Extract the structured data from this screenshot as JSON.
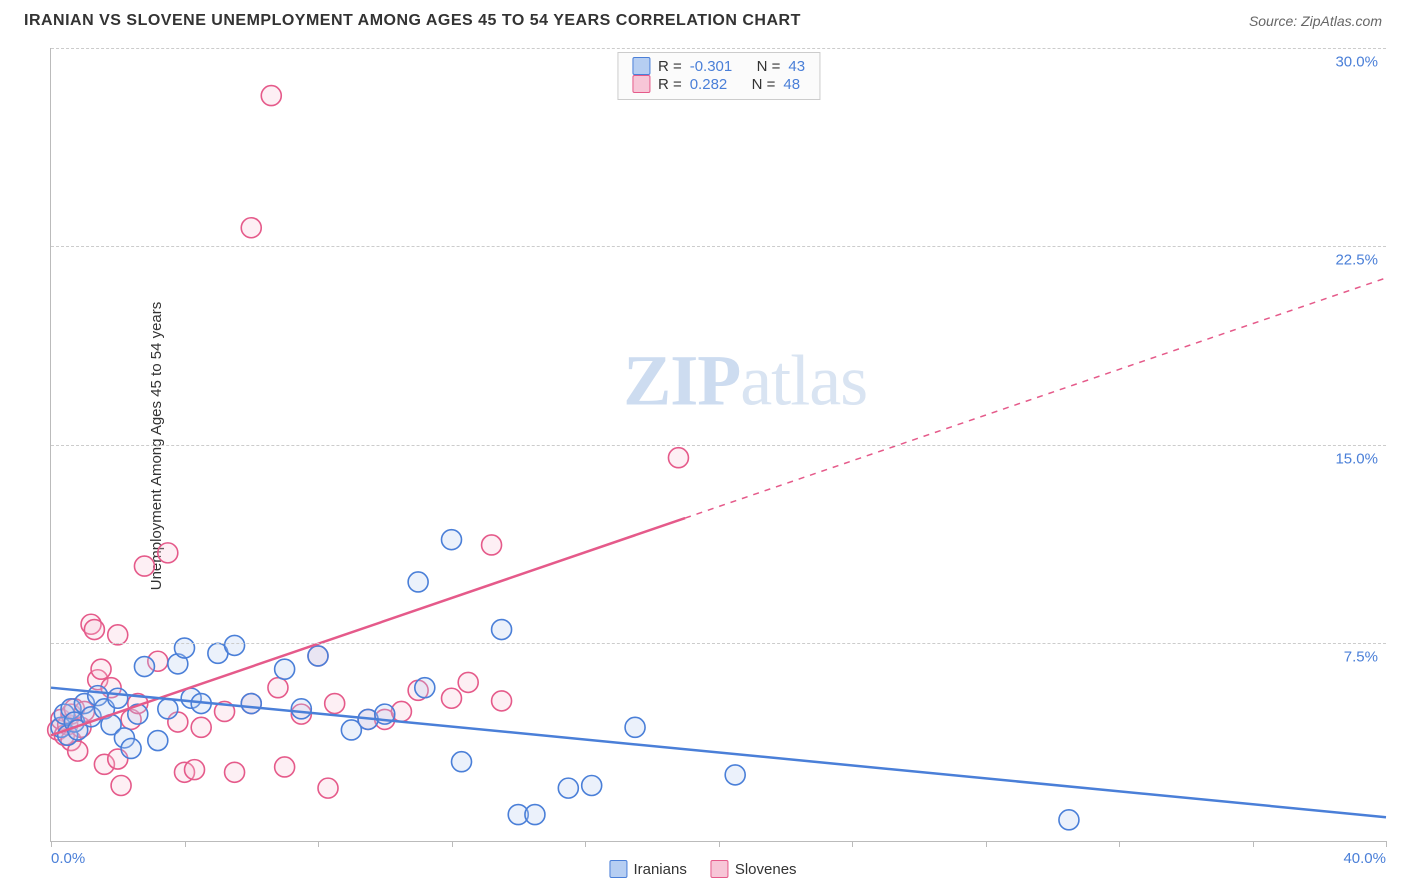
{
  "header": {
    "title": "IRANIAN VS SLOVENE UNEMPLOYMENT AMONG AGES 45 TO 54 YEARS CORRELATION CHART",
    "source": "Source: ZipAtlas.com"
  },
  "watermark": {
    "zip": "ZIP",
    "atlas": "atlas"
  },
  "chart": {
    "type": "scatter-with-regression",
    "ylabel": "Unemployment Among Ages 45 to 54 years",
    "xlim": [
      0,
      40
    ],
    "ylim": [
      0,
      30
    ],
    "x_ticks": [
      0,
      4,
      8,
      12,
      16,
      20,
      24,
      28,
      32,
      36,
      40
    ],
    "y_gridlines": [
      7.5,
      15.0,
      22.5,
      30.0
    ],
    "y_tick_labels": [
      "7.5%",
      "15.0%",
      "22.5%",
      "30.0%"
    ],
    "x_start_label": "0.0%",
    "x_end_label": "40.0%",
    "background_color": "#ffffff",
    "grid_color": "#cccccc",
    "axis_color": "#bbbbbb",
    "tick_label_color": "#4a7fd8",
    "label_fontsize": 15,
    "marker_radius": 10,
    "marker_stroke_width": 1.6,
    "marker_fill_opacity": 0.28,
    "series": {
      "iranians": {
        "label": "Iranians",
        "color": "#4a7fd8",
        "fill": "#b6cef2",
        "R": "-0.301",
        "N": "43",
        "regression": {
          "x1": 0,
          "y1": 5.8,
          "x2": 40,
          "y2": 0.9,
          "solid_to_x": 40
        },
        "points": [
          [
            0.3,
            4.3
          ],
          [
            0.4,
            4.8
          ],
          [
            0.5,
            4.0
          ],
          [
            0.6,
            5.0
          ],
          [
            0.7,
            4.5
          ],
          [
            0.8,
            4.2
          ],
          [
            1.0,
            5.2
          ],
          [
            1.2,
            4.7
          ],
          [
            1.4,
            5.5
          ],
          [
            1.6,
            5.0
          ],
          [
            1.8,
            4.4
          ],
          [
            2.0,
            5.4
          ],
          [
            2.2,
            3.9
          ],
          [
            2.4,
            3.5
          ],
          [
            2.6,
            4.8
          ],
          [
            2.8,
            6.6
          ],
          [
            3.2,
            3.8
          ],
          [
            3.5,
            5.0
          ],
          [
            3.8,
            6.7
          ],
          [
            4.0,
            7.3
          ],
          [
            4.2,
            5.4
          ],
          [
            4.5,
            5.2
          ],
          [
            5.0,
            7.1
          ],
          [
            5.5,
            7.4
          ],
          [
            6.0,
            5.2
          ],
          [
            7.0,
            6.5
          ],
          [
            7.5,
            5.0
          ],
          [
            8.0,
            7.0
          ],
          [
            9.0,
            4.2
          ],
          [
            9.5,
            4.6
          ],
          [
            10.0,
            4.8
          ],
          [
            11.0,
            9.8
          ],
          [
            11.2,
            5.8
          ],
          [
            12.0,
            11.4
          ],
          [
            12.3,
            3.0
          ],
          [
            13.5,
            8.0
          ],
          [
            14.0,
            1.0
          ],
          [
            14.5,
            1.0
          ],
          [
            15.5,
            2.0
          ],
          [
            16.2,
            2.1
          ],
          [
            17.5,
            4.3
          ],
          [
            20.5,
            2.5
          ],
          [
            30.5,
            0.8
          ]
        ]
      },
      "slovenes": {
        "label": "Slovenes",
        "color": "#e55a8a",
        "fill": "#f7c6d7",
        "R": "0.282",
        "N": "48",
        "regression": {
          "x1": 0,
          "y1": 4.0,
          "x2": 40,
          "y2": 21.3,
          "solid_to_x": 19
        },
        "points": [
          [
            0.2,
            4.2
          ],
          [
            0.3,
            4.6
          ],
          [
            0.4,
            4.0
          ],
          [
            0.5,
            4.4
          ],
          [
            0.6,
            4.8
          ],
          [
            0.6,
            3.8
          ],
          [
            0.7,
            5.0
          ],
          [
            0.8,
            3.4
          ],
          [
            0.9,
            4.3
          ],
          [
            1.0,
            4.9
          ],
          [
            1.2,
            8.2
          ],
          [
            1.3,
            8.0
          ],
          [
            1.4,
            6.1
          ],
          [
            1.5,
            6.5
          ],
          [
            1.6,
            2.9
          ],
          [
            1.8,
            5.8
          ],
          [
            2.0,
            7.8
          ],
          [
            2.0,
            3.1
          ],
          [
            2.1,
            2.1
          ],
          [
            2.4,
            4.6
          ],
          [
            2.6,
            5.2
          ],
          [
            2.8,
            10.4
          ],
          [
            3.2,
            6.8
          ],
          [
            3.5,
            10.9
          ],
          [
            3.8,
            4.5
          ],
          [
            4.0,
            2.6
          ],
          [
            4.3,
            2.7
          ],
          [
            4.5,
            4.3
          ],
          [
            5.2,
            4.9
          ],
          [
            5.5,
            2.6
          ],
          [
            6.0,
            5.2
          ],
          [
            6.0,
            23.2
          ],
          [
            6.6,
            28.2
          ],
          [
            6.8,
            5.8
          ],
          [
            7.0,
            2.8
          ],
          [
            7.5,
            4.8
          ],
          [
            8.0,
            7.0
          ],
          [
            8.3,
            2.0
          ],
          [
            8.5,
            5.2
          ],
          [
            9.5,
            4.6
          ],
          [
            10.0,
            4.6
          ],
          [
            10.5,
            4.9
          ],
          [
            11.0,
            5.7
          ],
          [
            12.0,
            5.4
          ],
          [
            12.5,
            6.0
          ],
          [
            13.2,
            11.2
          ],
          [
            13.5,
            5.3
          ],
          [
            18.8,
            14.5
          ]
        ]
      }
    }
  },
  "stats_box": {
    "rows": [
      {
        "swatch": "iranians",
        "R_label": "R =",
        "R": "-0.301",
        "N_label": "N =",
        "N": "43"
      },
      {
        "swatch": "slovenes",
        "R_label": "R =",
        "R": " 0.282",
        "N_label": "N =",
        "N": "48"
      }
    ]
  },
  "legend": [
    {
      "swatch": "iranians",
      "label": "Iranians"
    },
    {
      "swatch": "slovenes",
      "label": "Slovenes"
    }
  ]
}
